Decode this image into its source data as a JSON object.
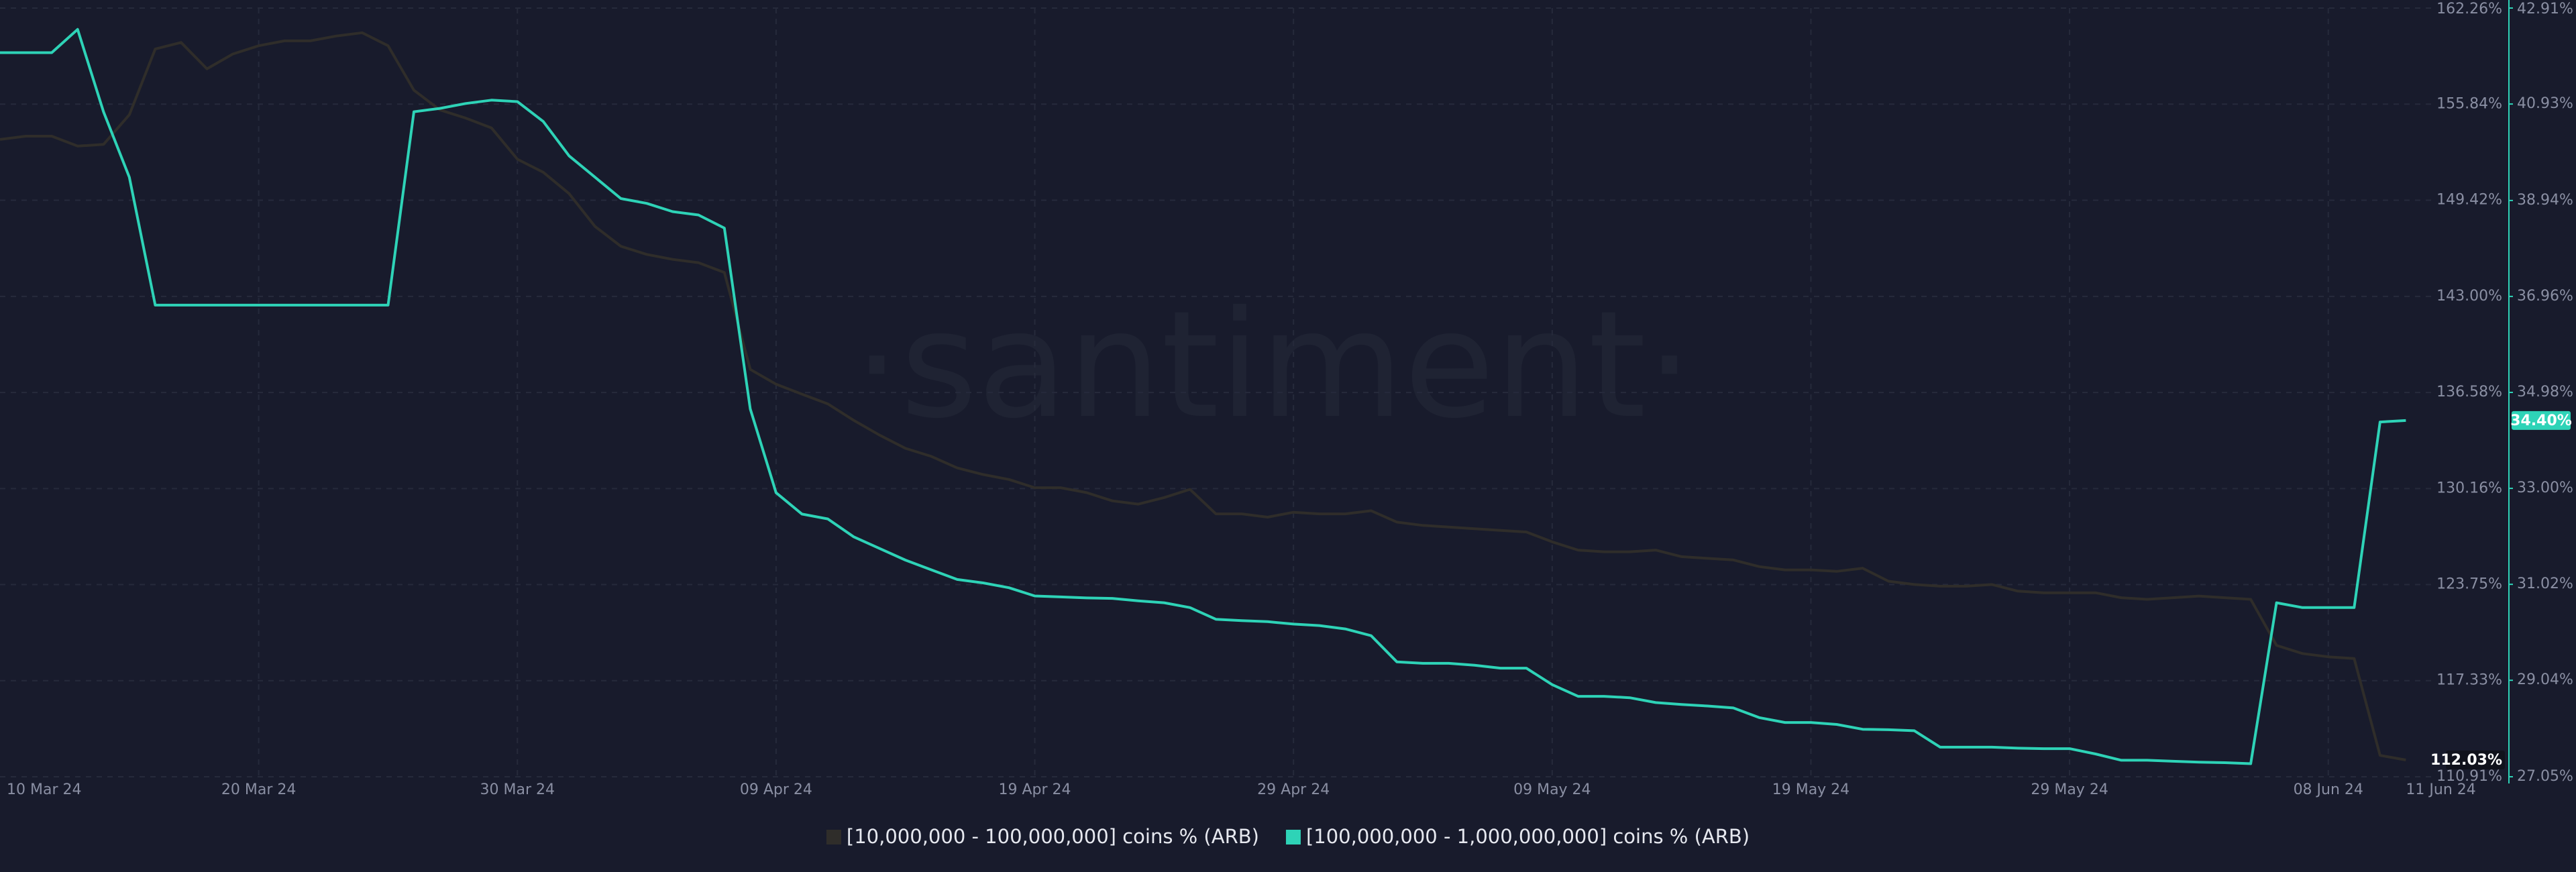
{
  "chart_data": {
    "type": "line",
    "watermark": "·santiment·",
    "x": [
      "2024-03-10",
      "2024-03-11",
      "2024-03-12",
      "2024-03-13",
      "2024-03-14",
      "2024-03-15",
      "2024-03-16",
      "2024-03-17",
      "2024-03-18",
      "2024-03-19",
      "2024-03-20",
      "2024-03-21",
      "2024-03-22",
      "2024-03-23",
      "2024-03-24",
      "2024-03-25",
      "2024-03-26",
      "2024-03-27",
      "2024-03-28",
      "2024-03-29",
      "2024-03-30",
      "2024-03-31",
      "2024-04-01",
      "2024-04-02",
      "2024-04-03",
      "2024-04-04",
      "2024-04-05",
      "2024-04-06",
      "2024-04-07",
      "2024-04-08",
      "2024-04-09",
      "2024-04-10",
      "2024-04-11",
      "2024-04-12",
      "2024-04-13",
      "2024-04-14",
      "2024-04-15",
      "2024-04-16",
      "2024-04-17",
      "2024-04-18",
      "2024-04-19",
      "2024-04-20",
      "2024-04-21",
      "2024-04-22",
      "2024-04-23",
      "2024-04-24",
      "2024-04-25",
      "2024-04-26",
      "2024-04-27",
      "2024-04-28",
      "2024-04-29",
      "2024-04-30",
      "2024-05-01",
      "2024-05-02",
      "2024-05-03",
      "2024-05-04",
      "2024-05-05",
      "2024-05-06",
      "2024-05-07",
      "2024-05-08",
      "2024-05-09",
      "2024-05-10",
      "2024-05-11",
      "2024-05-12",
      "2024-05-13",
      "2024-05-14",
      "2024-05-15",
      "2024-05-16",
      "2024-05-17",
      "2024-05-18",
      "2024-05-19",
      "2024-05-20",
      "2024-05-21",
      "2024-05-22",
      "2024-05-23",
      "2024-05-24",
      "2024-05-25",
      "2024-05-26",
      "2024-05-27",
      "2024-05-28",
      "2024-05-29",
      "2024-05-30",
      "2024-05-31",
      "2024-06-01",
      "2024-06-02",
      "2024-06-03",
      "2024-06-04",
      "2024-06-05",
      "2024-06-06",
      "2024-06-07",
      "2024-06-08",
      "2024-06-09",
      "2024-06-10",
      "2024-06-11"
    ],
    "xlim": [
      "2024-03-10",
      "2024-06-12"
    ],
    "xticks": [
      {
        "value": "2024-03-10",
        "label": "10 Mar 24"
      },
      {
        "value": "2024-03-20",
        "label": "20 Mar 24"
      },
      {
        "value": "2024-03-30",
        "label": "30 Mar 24"
      },
      {
        "value": "2024-04-09",
        "label": "09 Apr 24"
      },
      {
        "value": "2024-04-19",
        "label": "19 Apr 24"
      },
      {
        "value": "2024-04-29",
        "label": "29 Apr 24"
      },
      {
        "value": "2024-05-09",
        "label": "09 May 24"
      },
      {
        "value": "2024-05-19",
        "label": "19 May 24"
      },
      {
        "value": "2024-05-29",
        "label": "29 May 24"
      },
      {
        "value": "2024-06-08",
        "label": "08 Jun 24"
      },
      {
        "value": "2024-06-11",
        "label": "11 Jun 24"
      }
    ],
    "ylim": [
      110.91,
      162.26
    ],
    "yticks": [
      {
        "value": 110.91,
        "label": "110.91%"
      },
      {
        "value": 117.33,
        "label": "117.33%"
      },
      {
        "value": 123.75,
        "label": "123.75%"
      },
      {
        "value": 130.16,
        "label": "130.16%"
      },
      {
        "value": 136.58,
        "label": "136.58%"
      },
      {
        "value": 143.0,
        "label": "143.00%"
      },
      {
        "value": 149.42,
        "label": "149.42%"
      },
      {
        "value": 155.84,
        "label": "155.84%"
      },
      {
        "value": 162.26,
        "label": "162.26%"
      }
    ],
    "y2lim": [
      27.05,
      42.91
    ],
    "y2ticks": [
      {
        "value": 27.05,
        "label": "27.05%"
      },
      {
        "value": 29.04,
        "label": "29.04%"
      },
      {
        "value": 31.02,
        "label": "31.02%"
      },
      {
        "value": 33.0,
        "label": "33.00%"
      },
      {
        "value": 34.98,
        "label": "34.98%"
      },
      {
        "value": 36.96,
        "label": "36.96%"
      },
      {
        "value": 38.94,
        "label": "38.94%"
      },
      {
        "value": 40.93,
        "label": "40.93%"
      },
      {
        "value": 42.91,
        "label": "42.91%"
      }
    ],
    "grid": true,
    "legend": "bottom",
    "series": [
      {
        "name": "[10,000,000 - 100,000,000] coins % (ARB)",
        "color": "#2f2d2a",
        "axis": "y",
        "current_label": "112.03%",
        "values": [
          153.48,
          153.7,
          153.7,
          153.04,
          153.15,
          155.13,
          159.52,
          159.96,
          158.2,
          159.19,
          159.74,
          160.07,
          160.07,
          160.39,
          160.61,
          159.74,
          156.77,
          155.46,
          154.91,
          154.25,
          152.16,
          151.29,
          149.86,
          147.67,
          146.35,
          145.8,
          145.47,
          145.25,
          144.59,
          138.12,
          137.13,
          136.47,
          135.82,
          134.72,
          133.73,
          132.85,
          132.31,
          131.54,
          131.1,
          130.77,
          130.22,
          130.22,
          129.89,
          129.34,
          129.12,
          129.56,
          130.11,
          128.47,
          128.47,
          128.25,
          128.58,
          128.47,
          128.47,
          128.68,
          127.92,
          127.7,
          127.59,
          127.48,
          127.37,
          127.26,
          126.6,
          126.05,
          125.94,
          125.94,
          126.05,
          125.61,
          125.5,
          125.39,
          124.95,
          124.73,
          124.73,
          124.63,
          124.84,
          123.97,
          123.75,
          123.64,
          123.64,
          123.75,
          123.31,
          123.2,
          123.2,
          123.2,
          122.87,
          122.76,
          122.87,
          122.98,
          122.87,
          122.76,
          119.69,
          119.14,
          118.92,
          118.81,
          112.34,
          112.03
        ]
      },
      {
        "name": "[100,000,000 - 1,000,000,000] coins % (ARB)",
        "color": "#2ed3b7",
        "axis": "y2",
        "current_label": "34.40%",
        "values": [
          41.99,
          41.99,
          41.99,
          42.47,
          40.77,
          39.42,
          36.78,
          36.78,
          36.78,
          36.78,
          36.78,
          36.78,
          36.78,
          36.78,
          36.78,
          36.78,
          40.77,
          40.84,
          40.94,
          41.01,
          40.98,
          40.57,
          39.86,
          39.42,
          38.98,
          38.88,
          38.71,
          38.64,
          38.37,
          34.64,
          32.91,
          32.47,
          32.37,
          32.0,
          31.76,
          31.52,
          31.32,
          31.12,
          31.05,
          30.95,
          30.78,
          30.76,
          30.74,
          30.73,
          30.68,
          30.64,
          30.54,
          30.3,
          30.27,
          30.25,
          30.2,
          30.17,
          30.1,
          29.96,
          29.42,
          29.39,
          29.39,
          29.35,
          29.29,
          29.29,
          28.95,
          28.71,
          28.71,
          28.68,
          28.58,
          28.54,
          28.51,
          28.47,
          28.27,
          28.17,
          28.17,
          28.13,
          28.03,
          28.02,
          28.0,
          27.66,
          27.66,
          27.66,
          27.64,
          27.63,
          27.63,
          27.52,
          27.39,
          27.39,
          27.37,
          27.35,
          27.34,
          27.32,
          30.64,
          30.54,
          30.54,
          30.54,
          34.37,
          34.4
        ]
      }
    ]
  }
}
